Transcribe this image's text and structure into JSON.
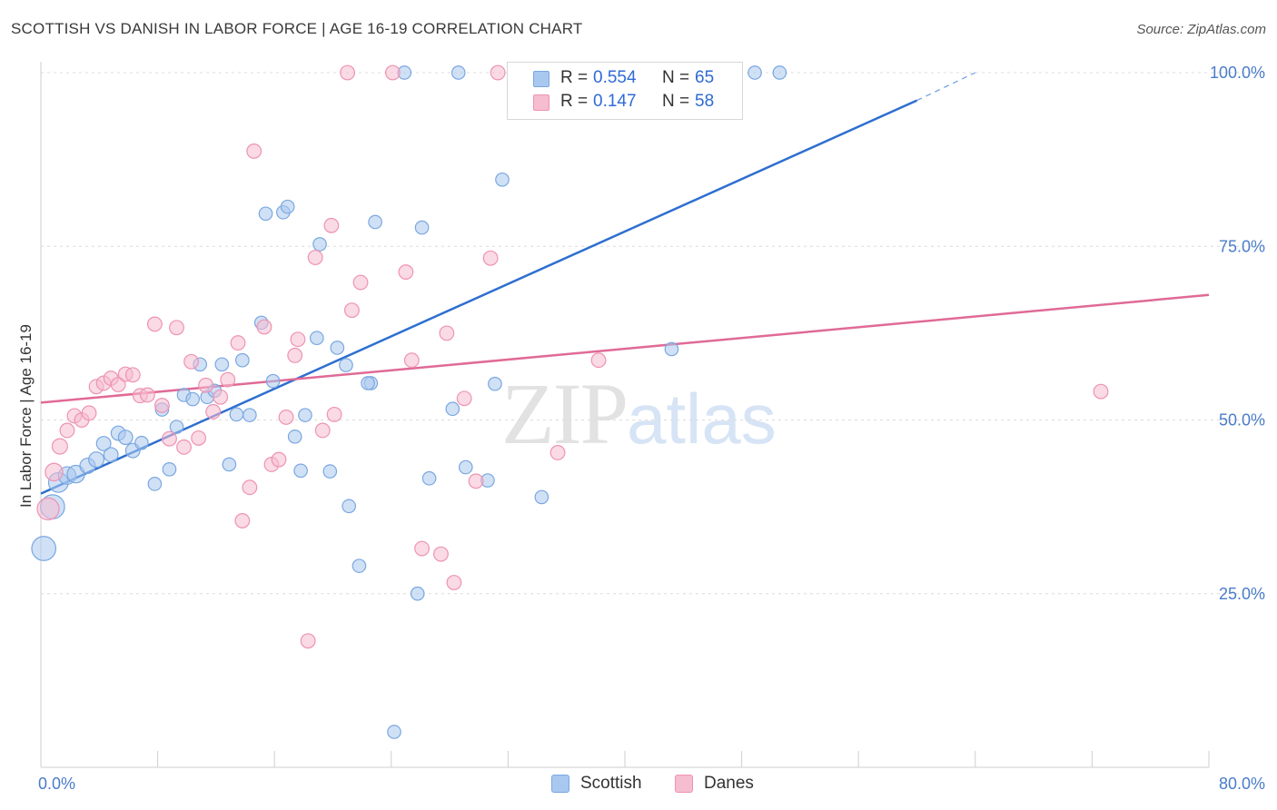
{
  "header": {
    "title": "SCOTTISH VS DANISH IN LABOR FORCE | AGE 16-19 CORRELATION CHART",
    "source": "Source: ZipAtlas.com"
  },
  "watermark": {
    "zip": "ZIP",
    "atlas": "atlas"
  },
  "legend": {
    "scottish": {
      "r_label": "R =",
      "r_value": "0.554",
      "n_label": "N =",
      "n_value": "65"
    },
    "danes": {
      "r_label": "R =",
      "r_value": "0.147",
      "n_label": "N =",
      "n_value": "58"
    }
  },
  "colors": {
    "scottish_fill": "#a9c8ef",
    "scottish_stroke": "#7aa7e0",
    "scottish_line": "#2e6fd0",
    "danes_fill": "#f6bcd0",
    "danes_stroke": "#ee93b2",
    "danes_line": "#e06a96",
    "axis_text": "#4a7cc9",
    "grid": "#dcdcdc"
  },
  "chart_data": {
    "type": "scatter",
    "title": "SCOTTISH VS DANISH IN LABOR FORCE | AGE 16-19 CORRELATION CHART",
    "xlabel": "",
    "ylabel": "In Labor Force | Age 16-19",
    "xlim": [
      0,
      80
    ],
    "ylim": [
      0,
      100
    ],
    "x_tick_labels": [
      "0.0%",
      "80.0%"
    ],
    "y_tick_labels": [
      "100.0%",
      "75.0%",
      "50.0%",
      "25.0%"
    ],
    "y_ticks": [
      100,
      75,
      50,
      25
    ],
    "grid": true,
    "legend_position": "bottom",
    "series": [
      {
        "name": "Scottish",
        "r": 0.554,
        "n": 65,
        "trend": {
          "x0": 0,
          "y0": 39.4,
          "x1": 60,
          "y1": 96.0,
          "dash_to_x": 64,
          "dash_to_y": 100
        },
        "points": [
          [
            0.2,
            31.5,
            2.2
          ],
          [
            0.8,
            37.5,
            2.2
          ],
          [
            1.2,
            41.0,
            1.8
          ],
          [
            1.8,
            42.0,
            1.6
          ],
          [
            2.4,
            42.2,
            1.6
          ],
          [
            3.2,
            43.4,
            1.4
          ],
          [
            3.8,
            44.3,
            1.4
          ],
          [
            4.3,
            46.6,
            1.3
          ],
          [
            4.8,
            45.0,
            1.3
          ],
          [
            5.3,
            48.1,
            1.3
          ],
          [
            5.8,
            47.5,
            1.3
          ],
          [
            6.3,
            45.6,
            1.3
          ],
          [
            6.9,
            46.7,
            1.2
          ],
          [
            7.8,
            40.8,
            1.2
          ],
          [
            8.3,
            51.5,
            1.2
          ],
          [
            8.8,
            42.9,
            1.2
          ],
          [
            9.3,
            49.0,
            1.2
          ],
          [
            9.8,
            53.6,
            1.2
          ],
          [
            10.4,
            53.0,
            1.2
          ],
          [
            10.9,
            58.0,
            1.2
          ],
          [
            11.4,
            53.3,
            1.2
          ],
          [
            11.9,
            54.2,
            1.2
          ],
          [
            12.4,
            58.0,
            1.2
          ],
          [
            12.9,
            43.6,
            1.2
          ],
          [
            13.4,
            50.8,
            1.2
          ],
          [
            13.8,
            58.6,
            1.2
          ],
          [
            14.3,
            50.7,
            1.2
          ],
          [
            15.1,
            64.0,
            1.2
          ],
          [
            15.4,
            79.7,
            1.2
          ],
          [
            15.9,
            55.6,
            1.2
          ],
          [
            16.6,
            79.9,
            1.2
          ],
          [
            16.9,
            80.7,
            1.2
          ],
          [
            17.4,
            47.6,
            1.2
          ],
          [
            17.8,
            42.7,
            1.2
          ],
          [
            18.1,
            50.7,
            1.2
          ],
          [
            18.9,
            61.8,
            1.2
          ],
          [
            19.1,
            75.3,
            1.2
          ],
          [
            19.8,
            42.6,
            1.2
          ],
          [
            20.3,
            60.4,
            1.2
          ],
          [
            20.9,
            57.9,
            1.2
          ],
          [
            21.1,
            37.6,
            1.2
          ],
          [
            21.8,
            29.0,
            1.2
          ],
          [
            22.6,
            55.3,
            1.2
          ],
          [
            22.9,
            78.5,
            1.2
          ],
          [
            22.4,
            55.3,
            1.2
          ],
          [
            24.2,
            5.1,
            1.2
          ],
          [
            24.9,
            100.0,
            1.2
          ],
          [
            25.8,
            25.0,
            1.2
          ],
          [
            26.1,
            77.7,
            1.2
          ],
          [
            26.6,
            41.6,
            1.2
          ],
          [
            28.2,
            51.6,
            1.2
          ],
          [
            28.6,
            100.0,
            1.2
          ],
          [
            29.1,
            43.2,
            1.2
          ],
          [
            30.6,
            41.3,
            1.2
          ],
          [
            31.1,
            55.2,
            1.2
          ],
          [
            31.6,
            84.6,
            1.2
          ],
          [
            34.3,
            38.9,
            1.2
          ],
          [
            35.0,
            100.0,
            1.2
          ],
          [
            36.6,
            100.0,
            1.2
          ],
          [
            40.8,
            100.0,
            1.2
          ],
          [
            43.1,
            100.0,
            1.2
          ],
          [
            43.2,
            60.2,
            1.2
          ],
          [
            46.6,
            100.0,
            1.2
          ],
          [
            48.9,
            100.0,
            1.2
          ],
          [
            50.6,
            100.0,
            1.2
          ]
        ]
      },
      {
        "name": "Danes",
        "r": 0.147,
        "n": 58,
        "trend": {
          "x0": 0,
          "y0": 52.5,
          "x1": 80,
          "y1": 68.0
        },
        "points": [
          [
            0.5,
            37.2,
            2.0
          ],
          [
            0.9,
            42.5,
            1.6
          ],
          [
            1.3,
            46.2,
            1.4
          ],
          [
            1.8,
            48.5,
            1.3
          ],
          [
            2.3,
            50.6,
            1.3
          ],
          [
            2.8,
            50.0,
            1.3
          ],
          [
            3.3,
            51.0,
            1.3
          ],
          [
            3.8,
            54.8,
            1.3
          ],
          [
            4.3,
            55.3,
            1.3
          ],
          [
            4.8,
            56.0,
            1.3
          ],
          [
            5.3,
            55.1,
            1.3
          ],
          [
            5.8,
            56.6,
            1.3
          ],
          [
            6.3,
            56.5,
            1.3
          ],
          [
            6.8,
            53.5,
            1.3
          ],
          [
            7.3,
            53.6,
            1.3
          ],
          [
            7.8,
            63.8,
            1.3
          ],
          [
            8.3,
            52.1,
            1.3
          ],
          [
            8.8,
            47.3,
            1.3
          ],
          [
            9.3,
            63.3,
            1.3
          ],
          [
            9.8,
            46.1,
            1.3
          ],
          [
            10.3,
            58.4,
            1.3
          ],
          [
            10.8,
            47.4,
            1.3
          ],
          [
            11.3,
            55.0,
            1.3
          ],
          [
            11.8,
            51.2,
            1.3
          ],
          [
            12.3,
            53.3,
            1.3
          ],
          [
            12.8,
            55.8,
            1.3
          ],
          [
            13.5,
            61.1,
            1.3
          ],
          [
            13.8,
            35.5,
            1.3
          ],
          [
            14.3,
            40.3,
            1.3
          ],
          [
            14.6,
            88.7,
            1.3
          ],
          [
            15.3,
            63.4,
            1.3
          ],
          [
            15.8,
            43.6,
            1.3
          ],
          [
            16.3,
            44.3,
            1.3
          ],
          [
            16.8,
            50.4,
            1.3
          ],
          [
            17.4,
            59.3,
            1.3
          ],
          [
            17.6,
            61.6,
            1.3
          ],
          [
            18.3,
            18.2,
            1.3
          ],
          [
            18.8,
            73.4,
            1.3
          ],
          [
            19.3,
            48.5,
            1.3
          ],
          [
            19.9,
            78.0,
            1.3
          ],
          [
            20.1,
            50.8,
            1.3
          ],
          [
            21.0,
            100.0,
            1.3
          ],
          [
            21.3,
            65.8,
            1.3
          ],
          [
            21.9,
            69.8,
            1.3
          ],
          [
            24.1,
            100.0,
            1.3
          ],
          [
            25.0,
            71.3,
            1.3
          ],
          [
            25.4,
            58.6,
            1.3
          ],
          [
            26.1,
            31.5,
            1.3
          ],
          [
            27.4,
            30.7,
            1.3
          ],
          [
            27.8,
            62.5,
            1.3
          ],
          [
            28.3,
            26.6,
            1.3
          ],
          [
            29.0,
            53.1,
            1.3
          ],
          [
            29.8,
            41.2,
            1.3
          ],
          [
            30.8,
            73.3,
            1.3
          ],
          [
            31.3,
            100.0,
            1.3
          ],
          [
            35.4,
            45.3,
            1.3
          ],
          [
            38.2,
            58.6,
            1.3
          ],
          [
            72.6,
            54.1,
            1.3
          ]
        ]
      }
    ]
  },
  "bottom_legend": {
    "scottish": "Scottish",
    "danes": "Danes"
  }
}
